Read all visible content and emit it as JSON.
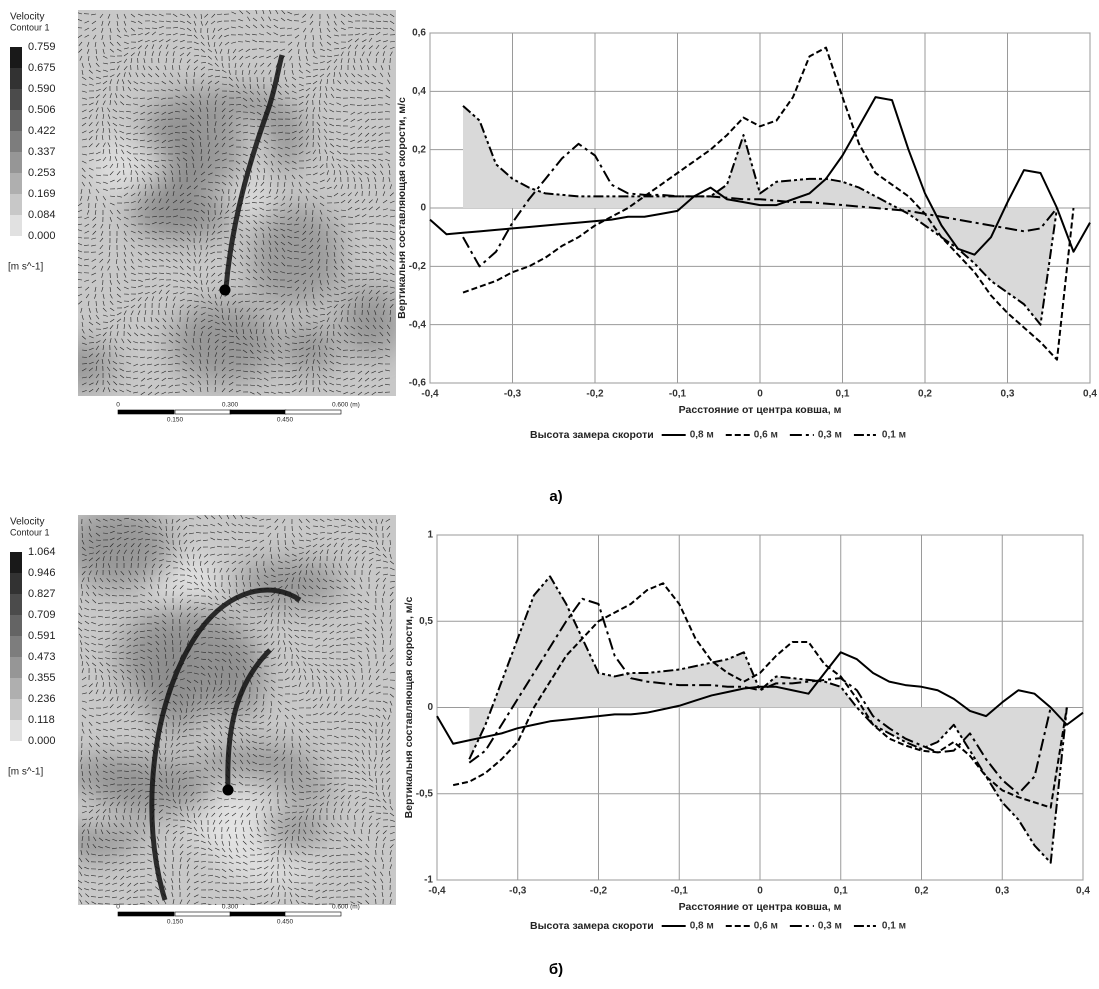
{
  "contour_plots": [
    {
      "title": "Velocity",
      "subtitle": "Contour 1",
      "levels": [
        "0.759",
        "0.675",
        "0.590",
        "0.506",
        "0.422",
        "0.337",
        "0.253",
        "0.169",
        "0.084",
        "0.000"
      ],
      "unit": "[m s^-1]",
      "scale_labels_top": [
        "0",
        "0.300",
        "0.600 (m)"
      ],
      "scale_labels_bottom": [
        "0.150",
        "0.450"
      ]
    },
    {
      "title": "Velocity",
      "subtitle": "Contour 1",
      "levels": [
        "1.064",
        "0.946",
        "0.827",
        "0.709",
        "0.591",
        "0.473",
        "0.355",
        "0.236",
        "0.118",
        "0.000"
      ],
      "unit": "[m s^-1]",
      "scale_labels_top": [
        "0",
        "0.300",
        "0.600 (m)"
      ],
      "scale_labels_bottom": [
        "0.150",
        "0.450"
      ]
    }
  ],
  "chart_data": [
    {
      "type": "line",
      "xlabel": "Расстояние от центра ковша, м",
      "ylabel": "Вертикальня составляющая скорости, м/с",
      "legend_title": "Высота замера скороти",
      "grid": true,
      "xlim": [
        -0.4,
        0.4
      ],
      "ylim": [
        -0.6,
        0.6
      ],
      "xticks": [
        {
          "value": -0.4,
          "label": "-0,4"
        },
        {
          "value": -0.3,
          "label": "-0,3"
        },
        {
          "value": -0.2,
          "label": "-0,2"
        },
        {
          "value": -0.1,
          "label": "-0,1"
        },
        0,
        {
          "value": 0.1,
          "label": "0,1"
        },
        {
          "value": 0.2,
          "label": "0,2"
        },
        {
          "value": 0.3,
          "label": "0,3"
        },
        {
          "value": 0.4,
          "label": "0,4"
        }
      ],
      "yticks": [
        {
          "value": -0.6,
          "label": "-0,6"
        },
        {
          "value": -0.4,
          "label": "-0,4"
        },
        {
          "value": -0.2,
          "label": "-0,2"
        },
        0,
        {
          "value": 0.2,
          "label": "0,2"
        },
        {
          "value": 0.4,
          "label": "0,4"
        },
        {
          "value": 0.6,
          "label": "0,6"
        }
      ],
      "x": [
        -0.4,
        -0.38,
        -0.36,
        -0.34,
        -0.32,
        -0.3,
        -0.28,
        -0.26,
        -0.24,
        -0.22,
        -0.2,
        -0.18,
        -0.16,
        -0.14,
        -0.12,
        -0.1,
        -0.08,
        -0.06,
        -0.04,
        -0.02,
        0,
        0.02,
        0.04,
        0.06,
        0.08,
        0.1,
        0.12,
        0.14,
        0.16,
        0.18,
        0.2,
        0.22,
        0.24,
        0.26,
        0.28,
        0.3,
        0.32,
        0.34,
        0.36,
        0.38,
        0.4
      ],
      "series": [
        {
          "name": "0,8 м",
          "color": "#000000",
          "dash": "solid",
          "values": [
            -0.04,
            -0.09,
            -0.085,
            -0.08,
            -0.075,
            -0.07,
            -0.065,
            -0.06,
            -0.055,
            -0.05,
            -0.045,
            -0.04,
            -0.03,
            -0.03,
            -0.02,
            -0.01,
            0.04,
            0.07,
            0.03,
            0.02,
            0.01,
            0.01,
            0.03,
            0.05,
            0.1,
            0.18,
            0.28,
            0.38,
            0.37,
            0.2,
            0.05,
            -0.06,
            -0.14,
            -0.16,
            -0.1,
            0.02,
            0.13,
            0.12,
            0,
            -0.15,
            -0.05
          ]
        },
        {
          "name": "0,6 м",
          "color": "#000000",
          "dash": "dashed",
          "values": [
            null,
            null,
            -0.29,
            -0.27,
            -0.25,
            -0.22,
            -0.2,
            -0.17,
            -0.13,
            -0.1,
            -0.06,
            -0.03,
            0,
            0.04,
            0.08,
            0.12,
            0.16,
            0.2,
            0.25,
            0.31,
            0.28,
            0.3,
            0.38,
            0.52,
            0.55,
            0.38,
            0.22,
            0.12,
            0.08,
            0.04,
            -0.02,
            -0.1,
            -0.16,
            -0.22,
            -0.3,
            -0.36,
            -0.41,
            -0.46,
            -0.52,
            0,
            null
          ]
        },
        {
          "name": "0,3 м",
          "color": "#000000",
          "dash": "dashdot",
          "values": [
            null,
            null,
            -0.1,
            -0.2,
            -0.15,
            -0.05,
            0.03,
            0.1,
            0.17,
            0.22,
            0.18,
            0.08,
            0.05,
            0.045,
            0.045,
            0.04,
            0.04,
            0.04,
            0.035,
            0.03,
            0.03,
            0.025,
            0.02,
            0.02,
            0.015,
            0.01,
            0.005,
            0,
            -0.005,
            -0.01,
            -0.02,
            -0.03,
            -0.04,
            -0.05,
            -0.06,
            -0.07,
            -0.08,
            -0.07,
            0,
            null,
            null
          ]
        },
        {
          "name": "0,1 м",
          "color": "#000000",
          "dash": "dashdotdot",
          "area_color": "#d9d9d9",
          "values": [
            null,
            null,
            0.35,
            0.3,
            0.15,
            0.1,
            0.07,
            0.05,
            0.045,
            0.04,
            0.04,
            0.04,
            0.04,
            0.04,
            0.04,
            0.04,
            0.04,
            0.04,
            0.08,
            0.25,
            0.05,
            0.09,
            0.095,
            0.1,
            0.1,
            0.09,
            0.07,
            0.04,
            0.01,
            -0.02,
            -0.06,
            -0.1,
            -0.14,
            -0.19,
            -0.25,
            -0.29,
            -0.33,
            -0.4,
            0,
            null,
            null
          ]
        }
      ]
    },
    {
      "type": "line",
      "xlabel": "Расстояние от центра ковша, м",
      "ylabel": "Вертикальня составляющая скорости, м/с",
      "legend_title": "Высота замера скороти",
      "grid": true,
      "xlim": [
        -0.4,
        0.4
      ],
      "ylim": [
        -1,
        1
      ],
      "xticks": [
        {
          "value": -0.4,
          "label": "-0,4"
        },
        {
          "value": -0.3,
          "label": "-0,3"
        },
        {
          "value": -0.2,
          "label": "-0,2"
        },
        {
          "value": -0.1,
          "label": "-0,1"
        },
        0,
        {
          "value": 0.1,
          "label": "0,1"
        },
        {
          "value": 0.2,
          "label": "0,2"
        },
        {
          "value": 0.3,
          "label": "0,3"
        },
        {
          "value": 0.4,
          "label": "0,4"
        }
      ],
      "yticks": [
        -1,
        {
          "value": -0.5,
          "label": "-0,5"
        },
        0,
        {
          "value": 0.5,
          "label": "0,5"
        },
        1
      ],
      "x": [
        -0.4,
        -0.38,
        -0.36,
        -0.34,
        -0.32,
        -0.3,
        -0.28,
        -0.26,
        -0.24,
        -0.22,
        -0.2,
        -0.18,
        -0.16,
        -0.14,
        -0.12,
        -0.1,
        -0.08,
        -0.06,
        -0.04,
        -0.02,
        0,
        0.02,
        0.04,
        0.06,
        0.08,
        0.1,
        0.12,
        0.14,
        0.16,
        0.18,
        0.2,
        0.22,
        0.24,
        0.26,
        0.28,
        0.3,
        0.32,
        0.34,
        0.36,
        0.38,
        0.4
      ],
      "series": [
        {
          "name": "0,8 м",
          "color": "#000000",
          "dash": "solid",
          "values": [
            -0.05,
            -0.21,
            -0.19,
            -0.17,
            -0.15,
            -0.12,
            -0.1,
            -0.08,
            -0.07,
            -0.06,
            -0.05,
            -0.04,
            -0.04,
            -0.03,
            -0.01,
            0.01,
            0.04,
            0.07,
            0.09,
            0.11,
            0.12,
            0.12,
            0.1,
            0.08,
            0.2,
            0.32,
            0.28,
            0.2,
            0.15,
            0.13,
            0.12,
            0.1,
            0.05,
            -0.02,
            -0.05,
            0.03,
            0.1,
            0.08,
            0,
            -0.1,
            -0.03
          ]
        },
        {
          "name": "0,6 м",
          "color": "#000000",
          "dash": "dashed",
          "values": [
            null,
            -0.45,
            -0.43,
            -0.38,
            -0.3,
            -0.2,
            0,
            0.15,
            0.3,
            0.4,
            0.5,
            0.55,
            0.6,
            0.68,
            0.72,
            0.6,
            0.4,
            0.27,
            0.2,
            0.15,
            0.2,
            0.3,
            0.38,
            0.38,
            0.25,
            0.18,
            0.05,
            -0.1,
            -0.18,
            -0.22,
            -0.25,
            -0.26,
            -0.2,
            -0.28,
            -0.4,
            -0.48,
            -0.52,
            -0.55,
            -0.58,
            0,
            null
          ]
        },
        {
          "name": "0,3 м",
          "color": "#000000",
          "dash": "dashdot",
          "values": [
            null,
            null,
            -0.32,
            -0.25,
            -0.1,
            0.05,
            0.2,
            0.35,
            0.5,
            0.63,
            0.6,
            0.3,
            0.17,
            0.15,
            0.14,
            0.13,
            0.13,
            0.13,
            0.12,
            0.12,
            0.1,
            0.14,
            0.14,
            0.15,
            0.16,
            0.17,
            0.1,
            -0.05,
            -0.12,
            -0.18,
            -0.22,
            -0.26,
            -0.25,
            -0.15,
            -0.3,
            -0.42,
            -0.5,
            -0.4,
            0,
            null,
            null
          ]
        },
        {
          "name": "0,1 м",
          "color": "#000000",
          "dash": "dashdotdot",
          "area_color": "#d9d9d9",
          "values": [
            null,
            null,
            -0.3,
            -0.1,
            0.15,
            0.4,
            0.65,
            0.76,
            0.6,
            0.4,
            0.2,
            0.18,
            0.2,
            0.2,
            0.21,
            0.22,
            0.24,
            0.26,
            0.28,
            0.32,
            0.1,
            0.18,
            0.17,
            0.16,
            0.15,
            0.12,
            0,
            -0.1,
            -0.15,
            -0.2,
            -0.24,
            -0.2,
            -0.1,
            -0.25,
            -0.4,
            -0.55,
            -0.65,
            -0.8,
            -0.9,
            0,
            null
          ]
        }
      ]
    }
  ],
  "captions": [
    "а)",
    "б)"
  ]
}
